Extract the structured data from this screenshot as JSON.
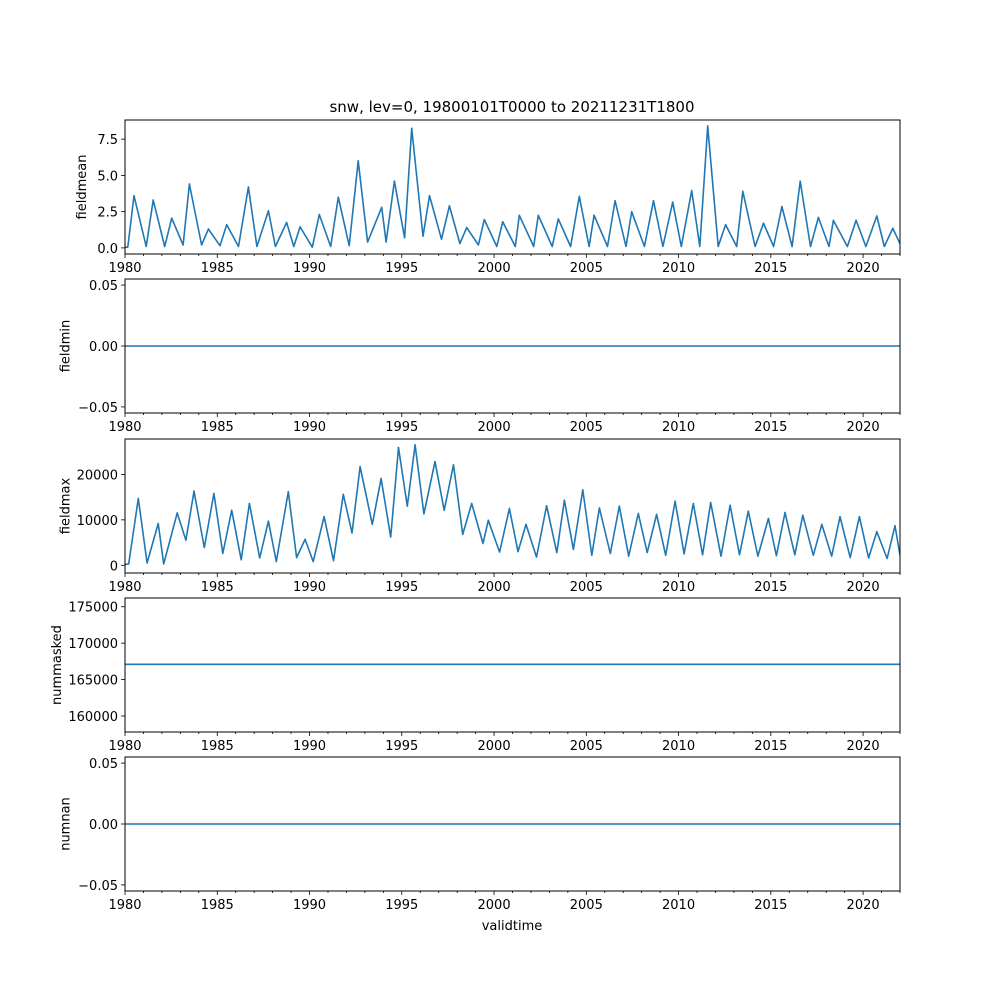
{
  "chart_data": {
    "type": "line",
    "title": "snw, lev=0, 19800101T0000 to 20211231T1800",
    "xlabel": "validtime",
    "xlim": [
      1980,
      2022
    ],
    "xticks": [
      1980,
      1985,
      1990,
      1995,
      2000,
      2005,
      2010,
      2015,
      2020
    ],
    "xtick_labels": [
      "1980",
      "1985",
      "1990",
      "1995",
      "2000",
      "2005",
      "2010",
      "2015",
      "2020"
    ],
    "minor_xtick_step": 1,
    "line_color": "#1f77b4",
    "grid": false,
    "panels": [
      {
        "ylabel": "fieldmean",
        "ylim": [
          -0.42,
          8.82
        ],
        "yticks": [
          0.0,
          2.5,
          5.0,
          7.5
        ],
        "ytick_labels": [
          "0.0",
          "2.5",
          "5.0",
          "7.5"
        ],
        "peaks": [
          [
            1980.49,
            3.6
          ],
          [
            1981.53,
            3.3
          ],
          [
            1982.53,
            2.05
          ],
          [
            1983.49,
            4.4
          ],
          [
            1984.52,
            1.3
          ],
          [
            1985.51,
            1.6
          ],
          [
            1986.69,
            4.2
          ],
          [
            1987.77,
            2.55
          ],
          [
            1988.76,
            1.75
          ],
          [
            1989.49,
            1.45
          ],
          [
            1990.53,
            2.3
          ],
          [
            1991.56,
            3.5
          ],
          [
            1992.64,
            6.0
          ],
          [
            1993.91,
            2.8
          ],
          [
            1994.6,
            4.6
          ],
          [
            1995.54,
            8.25
          ],
          [
            1996.5,
            3.6
          ],
          [
            1997.58,
            2.9
          ],
          [
            1998.52,
            1.4
          ],
          [
            1999.47,
            1.95
          ],
          [
            2000.47,
            1.8
          ],
          [
            2001.37,
            2.25
          ],
          [
            2002.4,
            2.25
          ],
          [
            2003.48,
            2.0
          ],
          [
            2004.62,
            3.55
          ],
          [
            2005.42,
            2.25
          ],
          [
            2006.56,
            3.25
          ],
          [
            2007.46,
            2.5
          ],
          [
            2008.64,
            3.25
          ],
          [
            2009.68,
            3.15
          ],
          [
            2010.71,
            3.95
          ],
          [
            2011.58,
            8.4
          ],
          [
            2012.55,
            1.6
          ],
          [
            2013.48,
            3.9
          ],
          [
            2014.6,
            1.7
          ],
          [
            2015.6,
            2.85
          ],
          [
            2016.59,
            4.6
          ],
          [
            2017.58,
            2.1
          ],
          [
            2018.39,
            1.9
          ],
          [
            2019.62,
            1.9
          ],
          [
            2020.74,
            2.2
          ],
          [
            2021.61,
            1.35
          ]
        ],
        "troughs": [
          [
            1980.0,
            0.05
          ],
          [
            1980.15,
            0.05
          ],
          [
            1981.15,
            0.1
          ],
          [
            1982.15,
            0.1
          ],
          [
            1983.15,
            0.2
          ],
          [
            1984.15,
            0.2
          ],
          [
            1985.15,
            0.15
          ],
          [
            1986.15,
            0.1
          ],
          [
            1987.15,
            0.1
          ],
          [
            1988.15,
            0.1
          ],
          [
            1989.15,
            0.1
          ],
          [
            1990.15,
            0.05
          ],
          [
            1991.15,
            0.1
          ],
          [
            1992.15,
            0.15
          ],
          [
            1993.15,
            0.4
          ],
          [
            1994.15,
            0.4
          ],
          [
            1995.15,
            0.7
          ],
          [
            1996.15,
            0.8
          ],
          [
            1997.15,
            0.6
          ],
          [
            1998.15,
            0.3
          ],
          [
            1999.15,
            0.2
          ],
          [
            2000.15,
            0.1
          ],
          [
            2001.15,
            0.1
          ],
          [
            2002.15,
            0.1
          ],
          [
            2003.15,
            0.1
          ],
          [
            2004.15,
            0.1
          ],
          [
            2005.15,
            0.1
          ],
          [
            2006.15,
            0.1
          ],
          [
            2007.15,
            0.1
          ],
          [
            2008.15,
            0.1
          ],
          [
            2009.15,
            0.1
          ],
          [
            2010.15,
            0.1
          ],
          [
            2011.15,
            0.1
          ],
          [
            2012.15,
            0.1
          ],
          [
            2013.15,
            0.1
          ],
          [
            2014.15,
            0.1
          ],
          [
            2015.15,
            0.1
          ],
          [
            2016.15,
            0.1
          ],
          [
            2017.15,
            0.1
          ],
          [
            2018.15,
            0.1
          ],
          [
            2019.15,
            0.1
          ],
          [
            2020.15,
            0.1
          ],
          [
            2021.15,
            0.1
          ],
          [
            2022.0,
            0.3
          ]
        ]
      },
      {
        "ylabel": "fieldmin",
        "ylim": [
          -0.055,
          0.055
        ],
        "yticks": [
          -0.05,
          0.0,
          0.05
        ],
        "ytick_labels": [
          "−0.05",
          "0.00",
          "0.05"
        ],
        "constant": 0.0
      },
      {
        "ylabel": "fieldmax",
        "ylim": [
          -1700,
          27800
        ],
        "yticks": [
          0,
          10000,
          20000
        ],
        "ytick_labels": [
          "0",
          "10000",
          "20000"
        ],
        "peaks": [
          [
            1980.72,
            14700
          ],
          [
            1981.8,
            9200
          ],
          [
            1982.83,
            11500
          ],
          [
            1983.74,
            16300
          ],
          [
            1984.82,
            15800
          ],
          [
            1985.78,
            12100
          ],
          [
            1986.74,
            13600
          ],
          [
            1987.77,
            9700
          ],
          [
            1988.85,
            16200
          ],
          [
            1989.76,
            5700
          ],
          [
            1990.79,
            10700
          ],
          [
            1991.83,
            15600
          ],
          [
            1992.74,
            21700
          ],
          [
            1993.88,
            19100
          ],
          [
            1994.82,
            25900
          ],
          [
            1995.72,
            26500
          ],
          [
            1996.8,
            22800
          ],
          [
            1997.8,
            22100
          ],
          [
            1998.79,
            13600
          ],
          [
            1999.69,
            9900
          ],
          [
            2000.83,
            12500
          ],
          [
            2001.73,
            9000
          ],
          [
            2002.85,
            13100
          ],
          [
            2003.81,
            14300
          ],
          [
            2004.81,
            16600
          ],
          [
            2005.71,
            12600
          ],
          [
            2006.79,
            13000
          ],
          [
            2007.82,
            11400
          ],
          [
            2008.81,
            11200
          ],
          [
            2009.81,
            14100
          ],
          [
            2010.8,
            13600
          ],
          [
            2011.74,
            13800
          ],
          [
            2012.79,
            13200
          ],
          [
            2013.78,
            11900
          ],
          [
            2014.87,
            10300
          ],
          [
            2015.77,
            11600
          ],
          [
            2016.73,
            11000
          ],
          [
            2017.76,
            9000
          ],
          [
            2018.75,
            10700
          ],
          [
            2019.8,
            10700
          ],
          [
            2020.74,
            7400
          ],
          [
            2021.73,
            8700
          ]
        ],
        "troughs": [
          [
            1980.0,
            200
          ],
          [
            1980.2,
            300
          ],
          [
            1981.2,
            500
          ],
          [
            1982.1,
            300
          ],
          [
            1983.3,
            5500
          ],
          [
            1984.3,
            3900
          ],
          [
            1985.3,
            2600
          ],
          [
            1986.3,
            1200
          ],
          [
            1987.3,
            1600
          ],
          [
            1988.2,
            800
          ],
          [
            1989.3,
            1700
          ],
          [
            1990.2,
            800
          ],
          [
            1991.3,
            1000
          ],
          [
            1992.3,
            7100
          ],
          [
            1993.4,
            9000
          ],
          [
            1994.4,
            6200
          ],
          [
            1995.3,
            13000
          ],
          [
            1996.2,
            11300
          ],
          [
            1997.3,
            12100
          ],
          [
            1998.3,
            6800
          ],
          [
            1999.4,
            4800
          ],
          [
            2000.3,
            2900
          ],
          [
            2001.3,
            3000
          ],
          [
            2002.3,
            1800
          ],
          [
            2003.4,
            2800
          ],
          [
            2004.3,
            3500
          ],
          [
            2005.3,
            2200
          ],
          [
            2006.3,
            2600
          ],
          [
            2007.3,
            2000
          ],
          [
            2008.3,
            2800
          ],
          [
            2009.3,
            2200
          ],
          [
            2010.3,
            2500
          ],
          [
            2011.3,
            2300
          ],
          [
            2012.3,
            2000
          ],
          [
            2013.3,
            2300
          ],
          [
            2014.3,
            2000
          ],
          [
            2015.3,
            2100
          ],
          [
            2016.3,
            2300
          ],
          [
            2017.3,
            2200
          ],
          [
            2018.3,
            2000
          ],
          [
            2019.3,
            1700
          ],
          [
            2020.3,
            1600
          ],
          [
            2021.3,
            1500
          ],
          [
            2022.0,
            2200
          ]
        ]
      },
      {
        "ylabel": "nummasked",
        "ylim": [
          157800,
          176200
        ],
        "yticks": [
          160000,
          165000,
          170000,
          175000
        ],
        "ytick_labels": [
          "160000",
          "165000",
          "170000",
          "175000"
        ],
        "constant": 167100
      },
      {
        "ylabel": "numnan",
        "ylim": [
          -0.055,
          0.055
        ],
        "yticks": [
          -0.05,
          0.0,
          0.05
        ],
        "ytick_labels": [
          "−0.05",
          "0.00",
          "0.05"
        ],
        "constant": 0.0
      }
    ]
  }
}
